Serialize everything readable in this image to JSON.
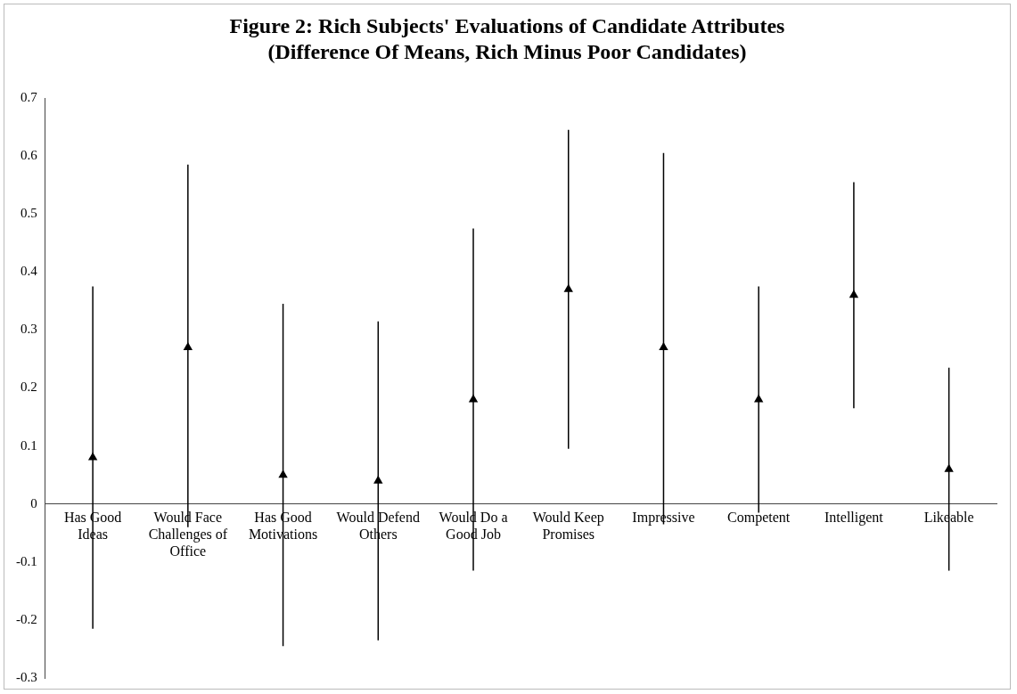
{
  "chart_data": {
    "type": "scatter",
    "title": "Figure 2: Rich Subjects' Evaluations of Candidate Attributes",
    "subtitle": "(Difference Of Means, Rich Minus Poor Candidates)",
    "categories": [
      "Has Good Ideas",
      "Would Face Challenges of Office",
      "Has Good Motivations",
      "Would Defend Others",
      "Would Do a Good Job",
      "Would Keep Promises",
      "Impressive",
      "Competent",
      "Intelligent",
      "Likeable"
    ],
    "values": [
      0.08,
      0.27,
      0.05,
      0.04,
      0.18,
      0.37,
      0.27,
      0.18,
      0.36,
      0.06
    ],
    "errors": [
      [
        -0.215,
        0.375
      ],
      [
        -0.04,
        0.585
      ],
      [
        -0.245,
        0.345
      ],
      [
        -0.235,
        0.315
      ],
      [
        -0.115,
        0.475
      ],
      [
        0.095,
        0.645
      ],
      [
        -0.035,
        0.605
      ],
      [
        -0.015,
        0.375
      ],
      [
        0.165,
        0.555
      ],
      [
        -0.115,
        0.235
      ]
    ],
    "color": "#000000",
    "marker": "triangle",
    "ylim": [
      -0.3,
      0.7
    ],
    "yticks": [
      -0.3,
      -0.2,
      -0.1,
      0,
      0.1,
      0.2,
      0.3,
      0.4,
      0.5,
      0.6,
      0.7
    ],
    "grid": false,
    "legend": false
  }
}
